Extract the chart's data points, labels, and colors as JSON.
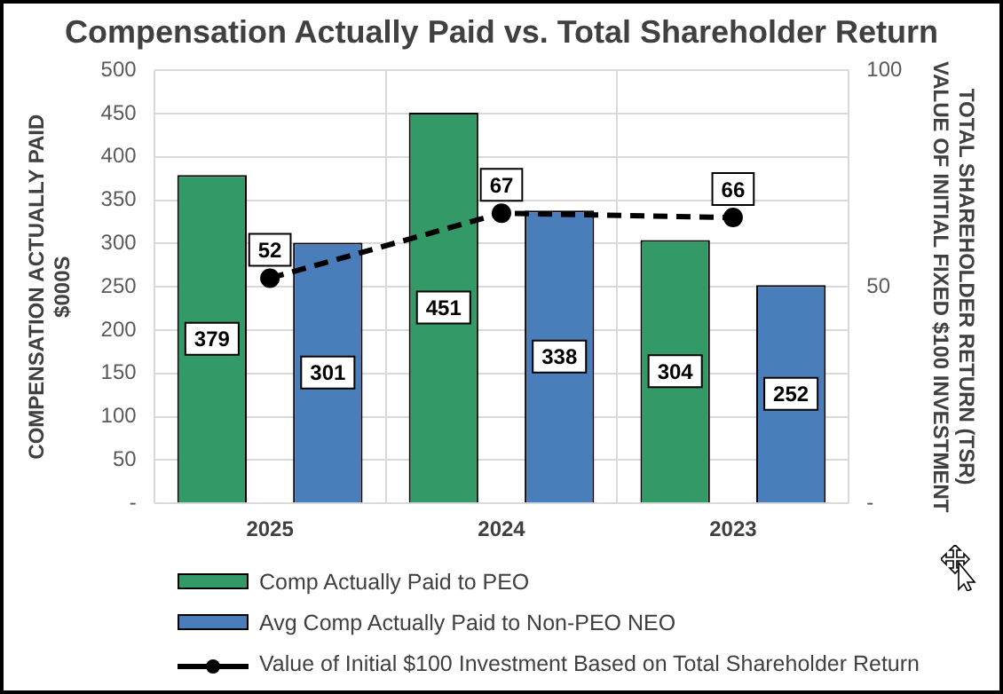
{
  "chart_data": {
    "type": "bar",
    "title": "Compensation Actually Paid vs. Total Shareholder Return",
    "ylabel": "COMPENSATION ACTUALLY PAID\n$000S",
    "y2label": "TOTAL SHAREHOLDER RETURN (TSR)\nVALUE OF INITIAL FIXED $100 INVESTMENT",
    "categories": [
      "2025",
      "2024",
      "2023"
    ],
    "series": [
      {
        "name": "Comp Actually Paid to PEO",
        "color": "#339966",
        "values": [
          379,
          451,
          304
        ]
      },
      {
        "name": "Avg Comp Actually Paid to Non-PEO NEO",
        "color": "#4a7ebb",
        "values": [
          301,
          338,
          252
        ]
      },
      {
        "name": "Value of Initial $100 Investment Based on Total Shareholder Return",
        "type": "line",
        "axis": "y2",
        "color": "#000000",
        "values": [
          52,
          67,
          66
        ],
        "marker": "circle",
        "line_style": "dashed"
      }
    ],
    "ylim": [
      0,
      500
    ],
    "yticks": [
      {
        "value": 0,
        "label": "-"
      },
      50,
      100,
      150,
      200,
      250,
      300,
      350,
      400,
      450,
      500
    ],
    "y2lim": [
      0,
      100
    ],
    "y2ticks": [
      {
        "value": 0,
        "label": "-"
      },
      50,
      100
    ],
    "grid": true,
    "legend": "bottom",
    "data_labels": true
  }
}
